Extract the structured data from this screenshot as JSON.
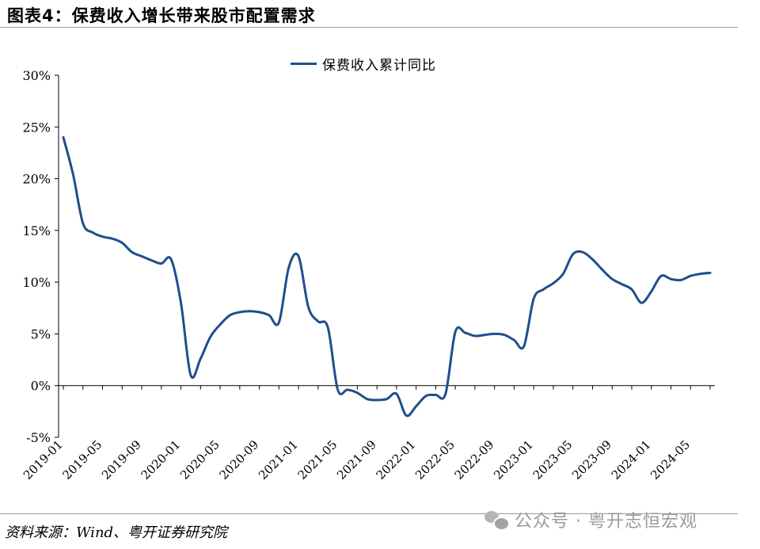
{
  "title": "图表4：保费收入增长带来股市配置需求",
  "source": "资料来源：Wind、粤开证券研究院",
  "watermark": "公众号 · 粤开志恒宏观",
  "colors": {
    "line": "#1f4e8c"
  },
  "chart_data": {
    "type": "line",
    "title": "",
    "xlabel": "",
    "ylabel": "",
    "ylim": [
      -5,
      30
    ],
    "yticks": [
      "30%",
      "25%",
      "20%",
      "15%",
      "10%",
      "5%",
      "0%",
      "-5%"
    ],
    "ytick_values": [
      30,
      25,
      20,
      15,
      10,
      5,
      0,
      -5
    ],
    "xticks": [
      "2019-01",
      "2019-05",
      "2019-09",
      "2020-01",
      "2020-05",
      "2020-09",
      "2021-01",
      "2021-05",
      "2021-09",
      "2022-01",
      "2022-05",
      "2022-09",
      "2023-01",
      "2023-05",
      "2023-09",
      "2024-01",
      "2024-05"
    ],
    "legend": "top-center",
    "grid": false,
    "series": [
      {
        "name": "保费收入累计同比",
        "x": [
          "2019-01",
          "2019-02",
          "2019-03",
          "2019-04",
          "2019-05",
          "2019-06",
          "2019-07",
          "2019-08",
          "2019-09",
          "2019-10",
          "2019-11",
          "2019-12",
          "2020-01",
          "2020-02",
          "2020-03",
          "2020-04",
          "2020-05",
          "2020-06",
          "2020-07",
          "2020-08",
          "2020-09",
          "2020-10",
          "2020-11",
          "2020-12",
          "2021-01",
          "2021-02",
          "2021-03",
          "2021-04",
          "2021-05",
          "2021-06",
          "2021-07",
          "2021-08",
          "2021-09",
          "2021-10",
          "2021-11",
          "2021-12",
          "2022-01",
          "2022-02",
          "2022-03",
          "2022-04",
          "2022-05",
          "2022-06",
          "2022-07",
          "2022-08",
          "2022-09",
          "2022-10",
          "2022-11",
          "2022-12",
          "2023-01",
          "2023-02",
          "2023-03",
          "2023-04",
          "2023-05",
          "2023-06",
          "2023-07",
          "2023-08",
          "2023-09",
          "2023-10",
          "2023-11",
          "2023-12",
          "2024-01",
          "2024-02",
          "2024-03",
          "2024-04",
          "2024-05",
          "2024-06",
          "2024-07"
        ],
        "values": [
          24.0,
          20.4,
          15.7,
          14.8,
          14.4,
          14.2,
          13.8,
          12.9,
          12.5,
          12.1,
          11.8,
          12.2,
          8.0,
          1.0,
          2.6,
          4.7,
          5.9,
          6.8,
          7.1,
          7.2,
          7.1,
          6.8,
          6.1,
          11.4,
          12.5,
          7.6,
          6.2,
          5.6,
          -0.4,
          -0.4,
          -0.7,
          -1.3,
          -1.4,
          -1.3,
          -0.8,
          -2.9,
          -2.0,
          -1.0,
          -0.9,
          -0.8,
          5.2,
          5.1,
          4.8,
          4.9,
          5.0,
          4.9,
          4.4,
          3.8,
          8.4,
          9.3,
          9.9,
          10.8,
          12.7,
          12.9,
          12.2,
          11.2,
          10.3,
          9.8,
          9.3,
          8.0,
          9.1,
          10.6,
          10.3,
          10.2,
          10.6,
          10.8,
          10.9
        ]
      }
    ]
  }
}
